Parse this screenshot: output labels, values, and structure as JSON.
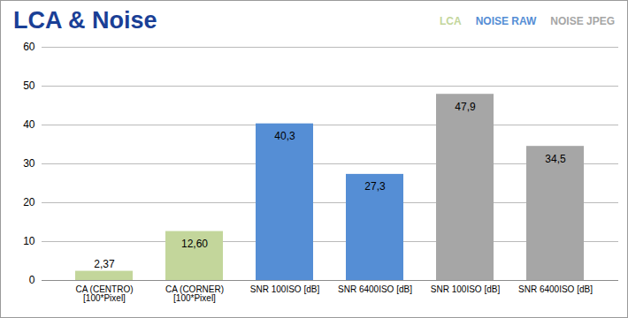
{
  "chart_data": {
    "type": "bar",
    "title": "LCA & Noise",
    "categories": [
      "CA (CENTRO)\n[100*Pixel]",
      "CA (CORNER)\n[100*Pixel]",
      "SNR 100ISO [dB]",
      "SNR 6400ISO [dB]",
      "SNR 100ISO [dB]",
      "SNR 6400ISO [dB]"
    ],
    "series": [
      {
        "name": "LCA",
        "color": "#c3d69b",
        "values": [
          2.37,
          12.6,
          null,
          null,
          null,
          null
        ],
        "value_labels": [
          "2,37",
          "12,60",
          null,
          null,
          null,
          null
        ]
      },
      {
        "name": "NOISE RAW",
        "color": "#558ed5",
        "values": [
          null,
          null,
          40.3,
          27.3,
          null,
          null
        ],
        "value_labels": [
          null,
          null,
          "40,3",
          "27,3",
          null,
          null
        ]
      },
      {
        "name": "NOISE JPEG",
        "color": "#a6a6a6",
        "values": [
          null,
          null,
          null,
          null,
          47.9,
          34.5
        ],
        "value_labels": [
          null,
          null,
          null,
          null,
          "47,9",
          "34,5"
        ]
      }
    ],
    "ylim": [
      0,
      60
    ],
    "yticks": [
      0,
      10,
      20,
      30,
      40,
      50,
      60
    ],
    "grid": true,
    "legend": "top-right",
    "data_labels": true
  }
}
